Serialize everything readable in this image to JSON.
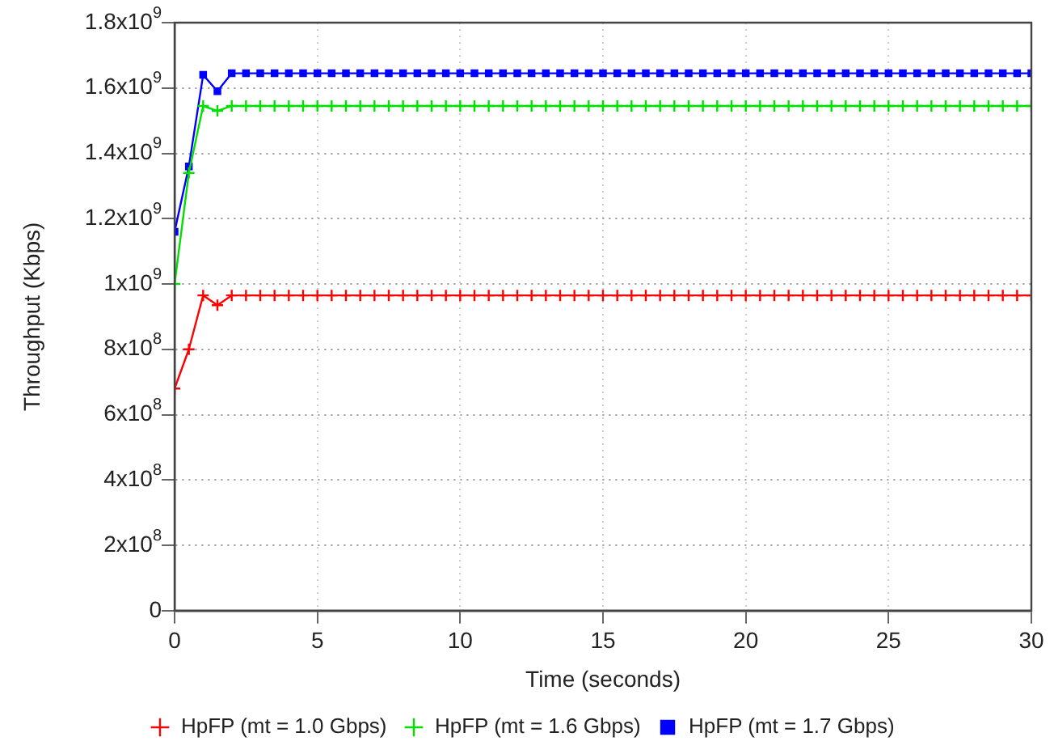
{
  "chart_data": {
    "type": "line",
    "xlabel": "Time (seconds)",
    "ylabel": "Throughput (Kbps)",
    "x": [
      0,
      0.5,
      1,
      1.5,
      2,
      2.5,
      3,
      3.5,
      4,
      4.5,
      5,
      5.5,
      6,
      6.5,
      7,
      7.5,
      8,
      8.5,
      9,
      9.5,
      10,
      10.5,
      11,
      11.5,
      12,
      12.5,
      13,
      13.5,
      14,
      14.5,
      15,
      15.5,
      16,
      16.5,
      17,
      17.5,
      18,
      18.5,
      19,
      19.5,
      20,
      20.5,
      21,
      21.5,
      22,
      22.5,
      23,
      23.5,
      24,
      24.5,
      25,
      25.5,
      26,
      26.5,
      27,
      27.5,
      28,
      28.5,
      29,
      29.5,
      30
    ],
    "series": [
      {
        "name": "HpFP (mt = 1.0 Gbps)",
        "color": "#ff0000",
        "marker": "cross",
        "values": [
          680000000,
          800000000,
          965000000,
          935000000,
          965000000,
          965000000,
          965000000,
          965000000,
          965000000,
          965000000,
          965000000,
          965000000,
          965000000,
          965000000,
          965000000,
          965000000,
          965000000,
          965000000,
          965000000,
          965000000,
          965000000,
          965000000,
          965000000,
          965000000,
          965000000,
          965000000,
          965000000,
          965000000,
          965000000,
          965000000,
          965000000,
          965000000,
          965000000,
          965000000,
          965000000,
          965000000,
          965000000,
          965000000,
          965000000,
          965000000,
          965000000,
          965000000,
          965000000,
          965000000,
          965000000,
          965000000,
          965000000,
          965000000,
          965000000,
          965000000,
          965000000,
          965000000,
          965000000,
          965000000,
          965000000,
          965000000,
          965000000,
          965000000,
          965000000,
          965000000,
          965000000
        ]
      },
      {
        "name": "HpFP (mt = 1.6 Gbps)",
        "color": "#00e000",
        "marker": "cross",
        "values": [
          1000000000,
          1340000000,
          1545000000,
          1530000000,
          1545000000,
          1545000000,
          1545000000,
          1545000000,
          1545000000,
          1545000000,
          1545000000,
          1545000000,
          1545000000,
          1545000000,
          1545000000,
          1545000000,
          1545000000,
          1545000000,
          1545000000,
          1545000000,
          1545000000,
          1545000000,
          1545000000,
          1545000000,
          1545000000,
          1545000000,
          1545000000,
          1545000000,
          1545000000,
          1545000000,
          1545000000,
          1545000000,
          1545000000,
          1545000000,
          1545000000,
          1545000000,
          1545000000,
          1545000000,
          1545000000,
          1545000000,
          1545000000,
          1545000000,
          1545000000,
          1545000000,
          1545000000,
          1545000000,
          1545000000,
          1545000000,
          1545000000,
          1545000000,
          1545000000,
          1545000000,
          1545000000,
          1545000000,
          1545000000,
          1545000000,
          1545000000,
          1545000000,
          1545000000,
          1545000000,
          1545000000
        ]
      },
      {
        "name": "HpFP (mt = 1.7 Gbps)",
        "color": "#0000ff",
        "marker": "square",
        "values": [
          1160000000,
          1360000000,
          1640000000,
          1590000000,
          1645000000,
          1645000000,
          1645000000,
          1645000000,
          1645000000,
          1645000000,
          1645000000,
          1645000000,
          1645000000,
          1645000000,
          1645000000,
          1645000000,
          1645000000,
          1645000000,
          1645000000,
          1645000000,
          1645000000,
          1645000000,
          1645000000,
          1645000000,
          1645000000,
          1645000000,
          1645000000,
          1645000000,
          1645000000,
          1645000000,
          1645000000,
          1645000000,
          1645000000,
          1645000000,
          1645000000,
          1645000000,
          1645000000,
          1645000000,
          1645000000,
          1645000000,
          1645000000,
          1645000000,
          1645000000,
          1645000000,
          1645000000,
          1645000000,
          1645000000,
          1645000000,
          1645000000,
          1645000000,
          1645000000,
          1645000000,
          1645000000,
          1645000000,
          1645000000,
          1645000000,
          1645000000,
          1645000000,
          1645000000,
          1645000000,
          1645000000
        ]
      }
    ],
    "xlim": [
      0,
      30
    ],
    "xticks": [
      0,
      5,
      10,
      15,
      20,
      25,
      30
    ],
    "ylim": [
      0,
      1800000000
    ],
    "yticks": [
      0,
      {
        "value": 200000000,
        "label": "2x10$^{8}$"
      },
      {
        "value": 400000000,
        "label": "4x10$^{8}$"
      },
      {
        "value": 600000000,
        "label": "6x10$^{8}$"
      },
      {
        "value": 800000000,
        "label": "8x10$^{8}$"
      },
      {
        "value": 1000000000,
        "label": "1x10$^{9}$"
      },
      {
        "value": 1200000000,
        "label": "1.2x10$^{9}$"
      },
      {
        "value": 1400000000,
        "label": "1.4x10$^{9}$"
      },
      {
        "value": 1600000000,
        "label": "1.6x10$^{9}$"
      },
      {
        "value": 1800000000,
        "label": "1.8x10$^{9}$"
      }
    ],
    "grid": true,
    "legend": "bottom"
  }
}
